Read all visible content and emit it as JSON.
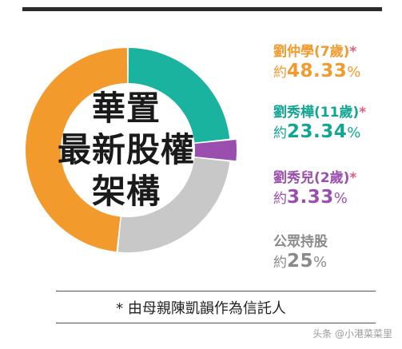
{
  "chart_data": {
    "type": "pie",
    "title_lines": [
      "華置",
      "最新股權",
      "架構"
    ],
    "slices": [
      {
        "name": "劉仲學",
        "age": "(7歲)",
        "star": "*",
        "approx": "約",
        "value": 48.33,
        "label": "48.33",
        "color": "#f39a2c",
        "name_color": "#f39a2c"
      },
      {
        "name": "劉秀樺",
        "age": "(11歲)",
        "star": "*",
        "approx": "約",
        "value": 23.34,
        "label": "23.34",
        "color": "#1ab3a0",
        "name_color": "#11a593"
      },
      {
        "name": "劉秀兒",
        "age": "(2歲)",
        "star": "*",
        "approx": "約",
        "value": 3.33,
        "label": "3.33",
        "color": "#9a4fae",
        "name_color": "#9a4fae"
      },
      {
        "name": "公眾持股",
        "age": "",
        "star": "",
        "approx": "約",
        "value": 25,
        "label": "25",
        "color": "#c8c8c8",
        "name_color": "#8a8a8a"
      }
    ],
    "percent_sign": "%"
  },
  "footer": {
    "note": "* 由母親陳凱韻作為信託人"
  },
  "watermark": "头条 @小港菜菜里"
}
